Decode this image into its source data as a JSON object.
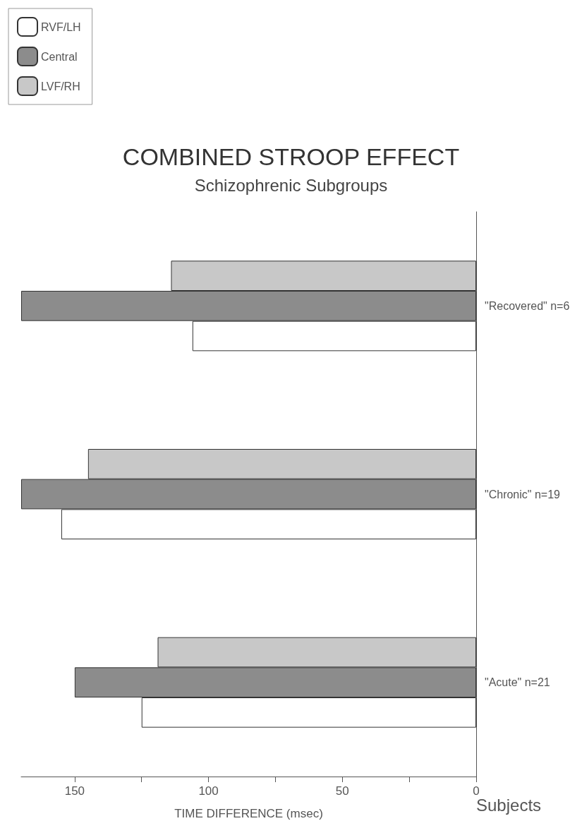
{
  "chart_data": {
    "type": "bar",
    "orientation": "horizontal",
    "title": "COMBINED STROOP EFFECT",
    "subtitle": "Schizophrenic Subgroups",
    "xlabel": "TIME DIFFERENCE (msec)",
    "ylabel": "Subjects",
    "categories": [
      "\"Recovered\" n=6",
      "\"Chronic\" n=19",
      "\"Acute\" n=21"
    ],
    "series": [
      {
        "name": "RVF/LH",
        "color": "#ffffff",
        "values": [
          106,
          155,
          125
        ]
      },
      {
        "name": "Central",
        "color": "#8c8c8c",
        "values": [
          170,
          170,
          150
        ]
      },
      {
        "name": "LVF/RH",
        "color": "#c8c8c8",
        "values": [
          114,
          145,
          119
        ]
      }
    ],
    "xlim": [
      170,
      0
    ],
    "xticks": [
      0,
      {
        "value": 25,
        "label": null
      },
      50,
      {
        "value": 75,
        "label": null
      },
      100,
      {
        "value": 125,
        "label": null
      },
      150
    ],
    "grid": false,
    "legend": "top left"
  }
}
